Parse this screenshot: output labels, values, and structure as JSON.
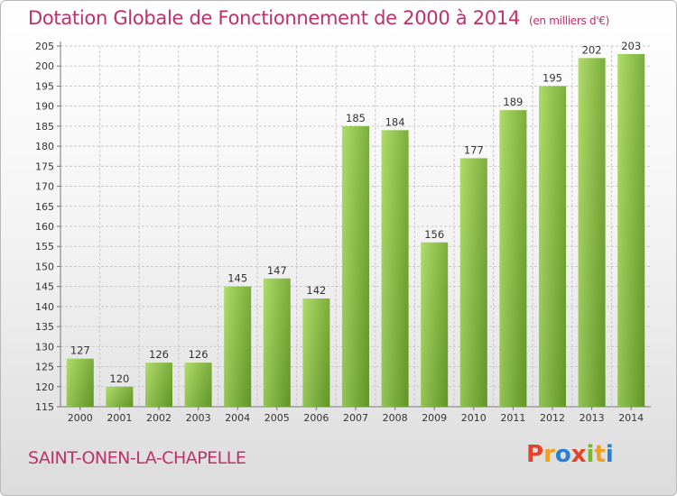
{
  "header": {
    "title": "Dotation Globale de Fonctionnement de 2000 à 2014",
    "unit": "(en milliers d'€)"
  },
  "footer": {
    "commune": "SAINT-ONEN-LA-CHAPELLE",
    "brand": "Proxiti",
    "brand_colors": [
      "#e0452a",
      "#f0a020",
      "#2a7fd0",
      "#e0452a",
      "#7ab52e",
      "#f0a020",
      "#2a7fd0"
    ]
  },
  "colors": {
    "title": "#c0306b",
    "bar_light": "#a6d95a",
    "bar_dark": "#6aa12a",
    "grid": "#c9c9c9"
  },
  "chart_data": {
    "type": "bar",
    "title": "Dotation Globale de Fonctionnement de 2000 à 2014",
    "subtitle": "(en milliers d'€)",
    "categories": [
      "2000",
      "2001",
      "2002",
      "2003",
      "2004",
      "2005",
      "2006",
      "2007",
      "2008",
      "2009",
      "2010",
      "2011",
      "2012",
      "2013",
      "2014"
    ],
    "values": [
      127,
      120,
      126,
      126,
      145,
      147,
      142,
      185,
      184,
      156,
      177,
      189,
      195,
      202,
      203
    ],
    "ylim": [
      115,
      205
    ],
    "ytick_step": 5,
    "grid": true,
    "data_labels": true,
    "xlabel": "",
    "ylabel": ""
  }
}
